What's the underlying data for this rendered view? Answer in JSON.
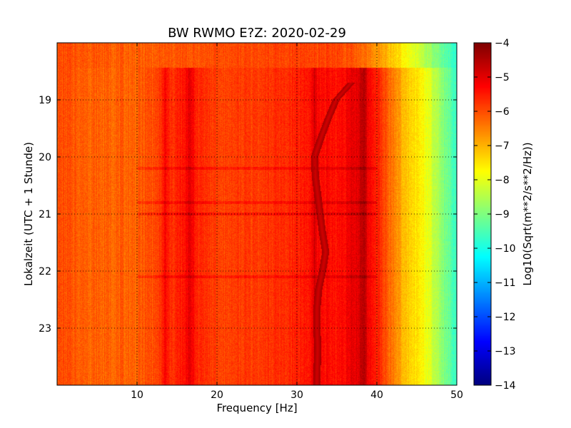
{
  "chart_data": {
    "type": "heatmap",
    "title": "BW RWMO E?Z: 2020-02-29",
    "xlabel": "Frequency [Hz]",
    "ylabel": "Lokalzeit (UTC + 1 Stunde)",
    "colorbar_label": "Log10(Sqrt(m**2/s**2/Hz))",
    "xlim": [
      0,
      50
    ],
    "ylim": [
      24,
      18
    ],
    "x_ticks": [
      10,
      20,
      30,
      40,
      50
    ],
    "x_tick_labels": [
      "10",
      "20",
      "30",
      "40",
      "50"
    ],
    "y_ticks": [
      19,
      20,
      21,
      22,
      23
    ],
    "y_tick_labels": [
      "19",
      "20",
      "21",
      "22",
      "23"
    ],
    "y_axis_inverted": true,
    "colorbar_range": [
      -14,
      -4
    ],
    "colorbar_ticks": [
      -4,
      -5,
      -6,
      -7,
      -8,
      -9,
      -10,
      -11,
      -12,
      -13,
      -14
    ],
    "colorbar_tick_labels": [
      "−4",
      "−5",
      "−6",
      "−7",
      "−8",
      "−9",
      "−10",
      "−11",
      "−12",
      "−13",
      "−14"
    ],
    "colormap": "jet",
    "grid": true,
    "grid_style": "dotted",
    "x_frequencies_hz": [
      0,
      5,
      10,
      13.5,
      16.5,
      20,
      25,
      30,
      33,
      35,
      38,
      40,
      41,
      42,
      43,
      44,
      45,
      46,
      47,
      48,
      49,
      50
    ],
    "value_profile": [
      -6.0,
      -6.2,
      -6.2,
      -5.8,
      -5.4,
      -5.9,
      -5.8,
      -5.6,
      -5.3,
      -5.4,
      -4.9,
      -5.5,
      -6.0,
      -6.4,
      -6.9,
      -7.2,
      -7.5,
      -7.8,
      -8.3,
      -8.8,
      -9.3,
      -9.8
    ],
    "early_segment": {
      "time_range": [
        "18:00",
        "18:26"
      ],
      "x_frequencies_hz": [
        0,
        10,
        20,
        30,
        35,
        38,
        40,
        42,
        44,
        46,
        48,
        50
      ],
      "value_profile": [
        -6.0,
        -6.2,
        -6.0,
        -5.9,
        -5.9,
        -6.2,
        -6.7,
        -7.2,
        -7.8,
        -8.5,
        -9.2,
        -9.9
      ]
    },
    "drifting_line": {
      "description_values": "frequency of a strong spectral line per local time",
      "time": [
        "18:42",
        "19:00",
        "19:20",
        "19:40",
        "20:00",
        "20:20",
        "20:40",
        "21:00",
        "21:20",
        "21:40",
        "22:00",
        "22:20",
        "22:40",
        "23:00",
        "23:20",
        "23:52"
      ],
      "frequency_hz": [
        36.8,
        34.9,
        33.9,
        33.0,
        32.2,
        32.3,
        32.6,
        32.9,
        33.2,
        33.6,
        33.2,
        32.7,
        32.5,
        32.5,
        32.6,
        32.5
      ],
      "value": -4.8
    },
    "strong_columns_hz": [
      13.5,
      16.6,
      32.2,
      38.3
    ],
    "horizontal_events_hours": [
      20.2,
      20.8,
      21.0,
      22.1
    ]
  }
}
